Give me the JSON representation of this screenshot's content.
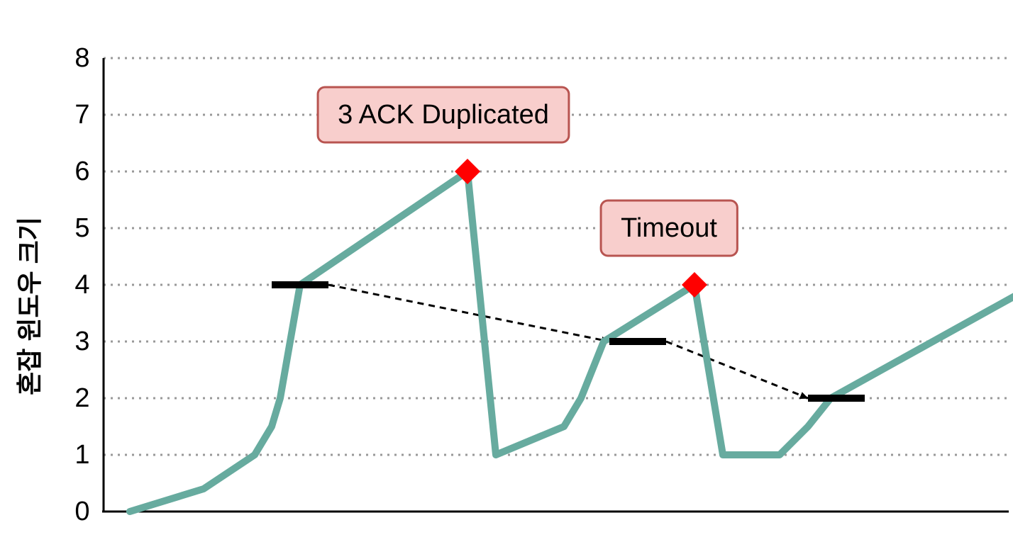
{
  "chart_data": {
    "type": "line",
    "title": "",
    "xlabel": "",
    "ylabel": "혼잡 윈도우 크기",
    "ylim": [
      0,
      8
    ],
    "xlim": [
      0,
      34
    ],
    "grid": true,
    "y_ticks": [
      "0",
      "1",
      "2",
      "3",
      "4",
      "5",
      "6",
      "7",
      "8"
    ],
    "series": [
      {
        "points": [
          [
            1,
            0
          ],
          [
            3.6,
            0.4
          ],
          [
            5.4,
            1
          ],
          [
            6,
            1.5
          ],
          [
            6.3,
            2
          ],
          [
            7,
            4
          ],
          [
            12.9,
            6
          ],
          [
            13.9,
            1
          ],
          [
            16.3,
            1.5
          ],
          [
            16.9,
            2
          ],
          [
            17.7,
            3
          ],
          [
            20.9,
            4
          ],
          [
            21.9,
            1
          ],
          [
            23.9,
            1
          ],
          [
            24.9,
            1.5
          ],
          [
            25.7,
            2
          ],
          [
            32.9,
            4
          ]
        ]
      }
    ],
    "thresholds": [
      {
        "x0": 6,
        "x1": 8,
        "y": 4
      },
      {
        "x0": 17.9,
        "x1": 19.9,
        "y": 3
      },
      {
        "x0": 24.9,
        "x1": 26.9,
        "y": 2
      }
    ],
    "arrows": [
      {
        "from": [
          8,
          4
        ],
        "to": [
          17.9,
          3
        ]
      },
      {
        "from": [
          19.9,
          3
        ],
        "to": [
          24.9,
          2
        ]
      }
    ],
    "markers": [
      {
        "x": 12.9,
        "y": 6
      },
      {
        "x": 20.9,
        "y": 4
      }
    ],
    "annotations": [
      {
        "text": "3 ACK Duplicated",
        "x": 12.05,
        "y": 7
      },
      {
        "text": "Timeout",
        "x": 20,
        "y": 5
      }
    ],
    "colors": {
      "line": "#67AB9F",
      "marker": "#FF0000",
      "threshold": "#000000",
      "grid": "#999999",
      "annotation_fill": "#F8CECC",
      "annotation_stroke": "#B85450"
    }
  }
}
